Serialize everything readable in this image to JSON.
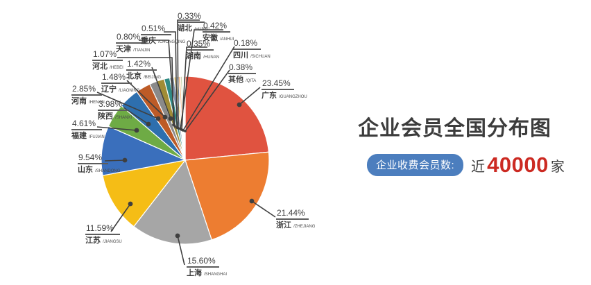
{
  "title": "企业会员全国分布图",
  "badge": {
    "label": "企业收费会员数:",
    "prefix": "近",
    "number": "40000",
    "suffix": "家"
  },
  "colors": {
    "badge_bg": "#4c7ebe",
    "number_red": "#cc2a22",
    "text_dark": "#3e3e3e",
    "leader_line": "#3f3f3f",
    "background": "#ffffff"
  },
  "chart_data": {
    "type": "pie",
    "title": "企业会员全国分布图",
    "start_angle_deg": 0,
    "direction": "clockwise",
    "value_format": "percent",
    "items": [
      {
        "name": "广东",
        "pinyin": "GUANGZHOU",
        "percent": 23.45,
        "color": "#e05340"
      },
      {
        "name": "浙江",
        "pinyin": "ZHEJIANG",
        "percent": 21.44,
        "color": "#ed7d31"
      },
      {
        "name": "上海",
        "pinyin": "SHANGHAI",
        "percent": 15.6,
        "color": "#a6a6a6"
      },
      {
        "name": "江苏",
        "pinyin": "JIANGSU",
        "percent": 11.59,
        "color": "#f5bd16"
      },
      {
        "name": "山东",
        "pinyin": "SHANDONG",
        "percent": 9.54,
        "color": "#3a6fbc"
      },
      {
        "name": "福建",
        "pinyin": "FUJIAN",
        "percent": 4.61,
        "color": "#6eab45"
      },
      {
        "name": "陕西",
        "pinyin": "SHANXI",
        "percent": 3.98,
        "color": "#2e6fae"
      },
      {
        "name": "河南",
        "pinyin": "HENAN",
        "percent": 2.85,
        "color": "#bd5b27"
      },
      {
        "name": "辽宁",
        "pinyin": "LIAONING",
        "percent": 1.48,
        "color": "#8a8a8a"
      },
      {
        "name": "北京",
        "pinyin": "BEIJING",
        "percent": 1.42,
        "color": "#a08c36"
      },
      {
        "name": "河北",
        "pinyin": "HEBEI",
        "percent": 1.07,
        "color": "#2f8a84"
      },
      {
        "name": "天津",
        "pinyin": "TIANJIN",
        "percent": 0.8,
        "color": "#8496b0"
      },
      {
        "name": "重庆",
        "pinyin": "CHONGQING",
        "percent": 0.51,
        "color": "#efd57f"
      },
      {
        "name": "湖北",
        "pinyin": "HUBEI",
        "percent": 0.33,
        "color": "#9cc2e5"
      },
      {
        "name": "安徽",
        "pinyin": "ANHUI",
        "percent": 0.42,
        "color": "#f3be8f"
      },
      {
        "name": "湖南",
        "pinyin": "HUNAN",
        "percent": 0.35,
        "color": "#c9d4ae"
      },
      {
        "name": "四川",
        "pinyin": "SICHUAN",
        "percent": 0.18,
        "color": "#a5d5dc"
      },
      {
        "name": "其他",
        "pinyin": "QITA",
        "percent": 0.38,
        "color": "#eadfc8"
      }
    ]
  }
}
